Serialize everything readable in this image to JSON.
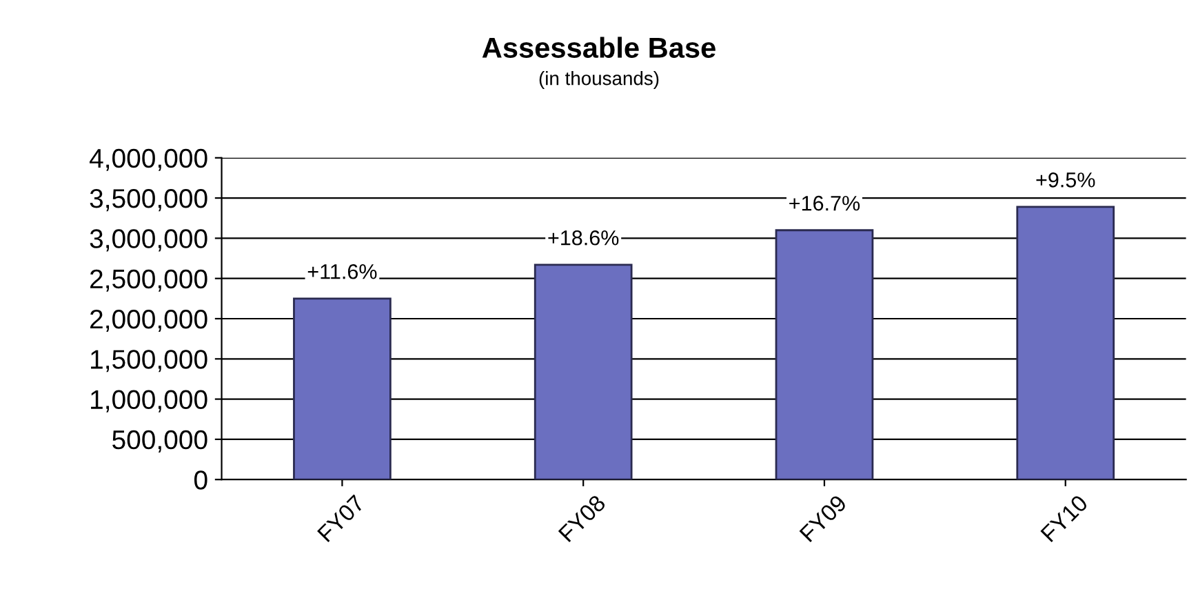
{
  "chart_data": {
    "type": "bar",
    "title": "Assessable Base",
    "subtitle": "(in thousands)",
    "categories": [
      "FY07",
      "FY08",
      "FY09",
      "FY10"
    ],
    "values": [
      2250000,
      2670000,
      3100000,
      3390000
    ],
    "annotations": [
      {
        "text": "+11.6%",
        "x": "FY07",
        "y": 2250000
      },
      {
        "text": "+18.6%",
        "x": "FY08",
        "y": 2670000
      },
      {
        "text": "+16.7%",
        "x": "FY09",
        "y": 3100000
      },
      {
        "text": "+9.5%",
        "x": "FY10",
        "y": 3390000
      }
    ],
    "color": "#6b6fc0",
    "ylim": [
      0,
      4000000
    ],
    "yticks": [
      {
        "value": 0,
        "label": "0"
      },
      {
        "value": 500000,
        "label": "500,000"
      },
      {
        "value": 1000000,
        "label": "1,000,000"
      },
      {
        "value": 1500000,
        "label": "1,500,000"
      },
      {
        "value": 2000000,
        "label": "2,000,000"
      },
      {
        "value": 2500000,
        "label": "2,500,000"
      },
      {
        "value": 3000000,
        "label": "3,000,000"
      },
      {
        "value": 3500000,
        "label": "3,500,000"
      },
      {
        "value": 4000000,
        "label": "4,000,000"
      }
    ],
    "grid": "y",
    "legend": false
  }
}
